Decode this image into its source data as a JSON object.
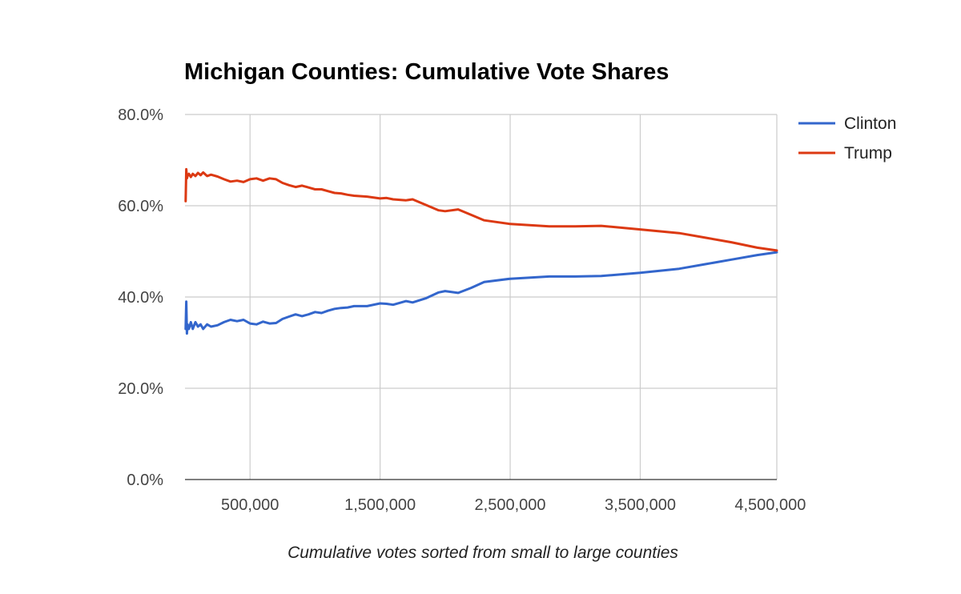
{
  "chart_data": {
    "type": "line",
    "title": "Michigan Counties: Cumulative Vote Shares",
    "xlabel": "Cumulative votes sorted from small to large counties",
    "ylabel": "",
    "xlim": [
      0,
      4550000
    ],
    "ylim": [
      0,
      0.8
    ],
    "grid": true,
    "legend_position": "top-right",
    "x_ticks": [
      {
        "value": 500000,
        "label": "500,000"
      },
      {
        "value": 1500000,
        "label": "1,500,000"
      },
      {
        "value": 2500000,
        "label": "2,500,000"
      },
      {
        "value": 3500000,
        "label": "3,500,000"
      },
      {
        "value": 4500000,
        "label": "4,500,000"
      }
    ],
    "x_grid": [
      500000,
      1500000,
      2500000,
      3500000
    ],
    "y_ticks": [
      {
        "value": 0.0,
        "label": "0.0%"
      },
      {
        "value": 0.2,
        "label": "20.0%"
      },
      {
        "value": 0.4,
        "label": "40.0%"
      },
      {
        "value": 0.6,
        "label": "60.0%"
      },
      {
        "value": 0.8,
        "label": "80.0%"
      }
    ],
    "series": [
      {
        "name": "Clinton",
        "color": "#3366cc",
        "x": [
          5000,
          10000,
          15000,
          20000,
          30000,
          45000,
          60000,
          80000,
          100000,
          120000,
          140000,
          170000,
          200000,
          250000,
          300000,
          350000,
          400000,
          450000,
          500000,
          550000,
          600000,
          650000,
          700000,
          750000,
          800000,
          850000,
          900000,
          950000,
          1000000,
          1050000,
          1100000,
          1150000,
          1200000,
          1250000,
          1300000,
          1400000,
          1500000,
          1550000,
          1600000,
          1700000,
          1750000,
          1850000,
          1950000,
          2000000,
          2100000,
          2200000,
          2300000,
          2500000,
          2800000,
          3000000,
          3200000,
          3500000,
          3800000,
          4000000,
          4200000,
          4400000,
          4550000
        ],
        "values": [
          0.33,
          0.39,
          0.32,
          0.34,
          0.33,
          0.345,
          0.33,
          0.345,
          0.335,
          0.34,
          0.33,
          0.34,
          0.335,
          0.338,
          0.345,
          0.35,
          0.347,
          0.35,
          0.342,
          0.34,
          0.346,
          0.342,
          0.343,
          0.352,
          0.357,
          0.362,
          0.358,
          0.362,
          0.367,
          0.365,
          0.37,
          0.374,
          0.376,
          0.377,
          0.38,
          0.38,
          0.386,
          0.385,
          0.383,
          0.391,
          0.388,
          0.397,
          0.41,
          0.413,
          0.409,
          0.42,
          0.433,
          0.44,
          0.445,
          0.445,
          0.446,
          0.453,
          0.462,
          0.472,
          0.482,
          0.492,
          0.498
        ]
      },
      {
        "name": "Trump",
        "color": "#dc3912",
        "x": [
          5000,
          10000,
          15000,
          20000,
          30000,
          45000,
          60000,
          80000,
          100000,
          120000,
          140000,
          170000,
          200000,
          250000,
          300000,
          350000,
          400000,
          450000,
          500000,
          550000,
          600000,
          650000,
          700000,
          750000,
          800000,
          850000,
          900000,
          950000,
          1000000,
          1050000,
          1100000,
          1150000,
          1200000,
          1250000,
          1300000,
          1400000,
          1500000,
          1550000,
          1600000,
          1700000,
          1750000,
          1850000,
          1950000,
          2000000,
          2100000,
          2200000,
          2300000,
          2500000,
          2800000,
          3000000,
          3200000,
          3500000,
          3800000,
          4000000,
          4200000,
          4400000,
          4550000
        ],
        "values": [
          0.61,
          0.68,
          0.66,
          0.665,
          0.67,
          0.663,
          0.67,
          0.665,
          0.672,
          0.667,
          0.673,
          0.665,
          0.668,
          0.664,
          0.658,
          0.653,
          0.655,
          0.652,
          0.658,
          0.66,
          0.655,
          0.66,
          0.658,
          0.65,
          0.645,
          0.641,
          0.644,
          0.64,
          0.636,
          0.636,
          0.632,
          0.628,
          0.627,
          0.624,
          0.622,
          0.62,
          0.616,
          0.617,
          0.614,
          0.612,
          0.614,
          0.602,
          0.59,
          0.588,
          0.592,
          0.58,
          0.568,
          0.56,
          0.555,
          0.555,
          0.556,
          0.548,
          0.54,
          0.53,
          0.52,
          0.508,
          0.502
        ]
      }
    ]
  }
}
